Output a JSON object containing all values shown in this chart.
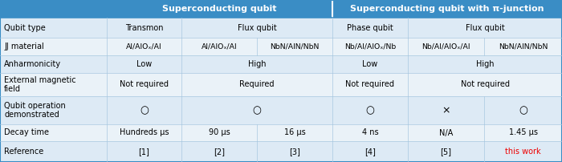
{
  "header1": "Superconducting qubit",
  "header2": "Superconducting qubit with π-junction",
  "header_bg": "#3a8dc5",
  "header_text_color": "#ffffff",
  "row_labels": [
    "Qubit type",
    "JJ material",
    "Anharmonicity",
    "External magnetic\nfield",
    "Qubit operation\ndemonstrated",
    "Decay time",
    "Reference"
  ],
  "data": [
    [
      "Transmon",
      "Flux qubit",
      "",
      "Phase qubit",
      "Flux qubit",
      ""
    ],
    [
      "Al/AlOₓ/Al",
      "Al/AlOₓ/Al",
      "NbN/AlN/NbN",
      "Nb/Al/AlOₓ/Nb",
      "Nb/Al/AlOₓ/Al",
      "NbN/AlN/NbN"
    ],
    [
      "Low",
      "High",
      "",
      "Low",
      "High",
      ""
    ],
    [
      "Not required",
      "Required",
      "",
      "Not required",
      "Not required",
      ""
    ],
    [
      "○",
      "○",
      "",
      "○",
      "×",
      "○"
    ],
    [
      "Hundreds μs",
      "90 μs",
      "16 μs",
      "4 ns",
      "N/A",
      "1.45 μs"
    ],
    [
      "[1]",
      "[2]",
      "[3]",
      "[4]",
      "[5]",
      "this work"
    ]
  ],
  "row_bg_light": "#ddeaf5",
  "row_bg_lighter": "#eaf2f8",
  "line_color": "#a8c8e0",
  "border_color": "#3a8dc5",
  "this_work_color": "#ee0000",
  "font_size": 7.0,
  "header_font_size": 8.0
}
